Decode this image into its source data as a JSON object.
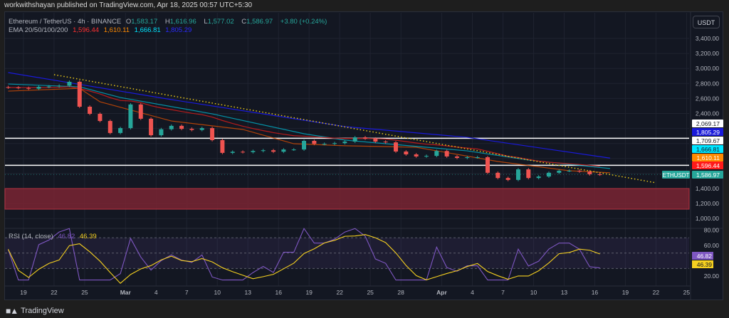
{
  "header": {
    "publisher_line": "workwithshayan published on TradingView.com, Apr 18, 2025 00:57 UTC+5:30"
  },
  "legend": {
    "symbol": "Ethereum / TetherUS · 4h · BINANCE",
    "o_label": "O",
    "o": "1,583.17",
    "h_label": "H",
    "h": "1,616.96",
    "l_label": "L",
    "l": "1,577.02",
    "c_label": "C",
    "c": "1,586.97",
    "change": "+3.80 (+0.24%)",
    "ema_label": "EMA 20/50/100/200",
    "ema20": "1,596.44",
    "ema50": "1,610.11",
    "ema100": "1,666.81",
    "ema200": "1,805.29",
    "rsi_label": "RSI (14, close)",
    "rsi": "46.82",
    "rsi_ma": "46.39"
  },
  "toolbar": {
    "currency": "USDT"
  },
  "footer": {
    "brand": "TradingView",
    "logo_text": "17"
  },
  "colors": {
    "up": "#26a69a",
    "down": "#ef5350",
    "ema20": "#b71c1c",
    "ema50": "#e65100",
    "ema100": "#00bcd4",
    "ema200": "#1a1adb",
    "trendline": "#e6c619",
    "rsi": "#7e57c2",
    "rsi_ma": "#f5d020",
    "zone": "#7a2532"
  },
  "chart_data": [
    {
      "type": "candlestick",
      "symbol": "ETHUSDT",
      "ylim": [
        1000,
        3500
      ],
      "y_ticks": [
        3400,
        3200,
        3000,
        2800,
        2600,
        2400,
        1400,
        1200,
        1000
      ],
      "y_tick_labels": [
        "3,400.00",
        "3,200.00",
        "3,000.00",
        "2,800.00",
        "2,600.00",
        "2,400.00",
        "1,400.00",
        "1,200.00",
        "1,000.00"
      ],
      "x_ticks": [
        {
          "date": "2025-02-19",
          "label": "19"
        },
        {
          "date": "2025-02-22",
          "label": "22"
        },
        {
          "date": "2025-02-25",
          "label": "25"
        },
        {
          "date": "2025-03-01",
          "label": "Mar"
        },
        {
          "date": "2025-03-04",
          "label": "4"
        },
        {
          "date": "2025-03-07",
          "label": "7"
        },
        {
          "date": "2025-03-10",
          "label": "10"
        },
        {
          "date": "2025-03-13",
          "label": "13"
        },
        {
          "date": "2025-03-16",
          "label": "16"
        },
        {
          "date": "2025-03-19",
          "label": "19"
        },
        {
          "date": "2025-03-22",
          "label": "22"
        },
        {
          "date": "2025-03-25",
          "label": "25"
        },
        {
          "date": "2025-03-28",
          "label": "28"
        },
        {
          "date": "2025-04-01",
          "label": "Apr"
        },
        {
          "date": "2025-04-04",
          "label": "4"
        },
        {
          "date": "2025-04-07",
          "label": "7"
        },
        {
          "date": "2025-04-10",
          "label": "10"
        },
        {
          "date": "2025-04-13",
          "label": "13"
        },
        {
          "date": "2025-04-16",
          "label": "16"
        },
        {
          "date": "2025-04-19",
          "label": "19"
        },
        {
          "date": "2025-04-22",
          "label": "22"
        },
        {
          "date": "2025-04-25",
          "label": "25"
        }
      ],
      "x_start": "2025-02-17",
      "daily_close": [
        2746,
        2740,
        2730,
        2755,
        2760,
        2770,
        2822,
        2490,
        2395,
        2300,
        2140,
        2205,
        2520,
        2330,
        2110,
        2190,
        2235,
        2195,
        2180,
        2205,
        2045,
        1875,
        1890,
        1885,
        1900,
        1910,
        1890,
        1920,
        1920,
        2035,
        1995,
        1995,
        2005,
        2025,
        2082,
        2065,
        2025,
        2015,
        1893,
        1855,
        1827,
        1835,
        1900,
        1827,
        1808,
        1817,
        1817,
        1610,
        1540,
        1515,
        1655,
        1540,
        1560,
        1610,
        1637,
        1637,
        1627,
        1590,
        1587
      ],
      "ema200": [
        {
          "date": "2025-02-17",
          "value": 2945
        },
        {
          "date": "2025-03-05",
          "value": 2585
        },
        {
          "date": "2025-03-22",
          "value": 2225
        },
        {
          "date": "2025-04-03",
          "value": 2082
        },
        {
          "date": "2025-04-17",
          "value": 1805.29
        }
      ],
      "ema100": [
        {
          "date": "2025-02-17",
          "value": 2793
        },
        {
          "date": "2025-02-24",
          "value": 2755
        },
        {
          "date": "2025-02-28",
          "value": 2613
        },
        {
          "date": "2025-03-09",
          "value": 2395
        },
        {
          "date": "2025-03-18",
          "value": 2130
        },
        {
          "date": "2025-03-22",
          "value": 2045
        },
        {
          "date": "2025-04-03",
          "value": 1902
        },
        {
          "date": "2025-04-09",
          "value": 1780
        },
        {
          "date": "2025-04-17",
          "value": 1666.81
        }
      ],
      "ema50": [
        {
          "date": "2025-02-17",
          "value": 2698
        },
        {
          "date": "2025-02-24",
          "value": 2735
        },
        {
          "date": "2025-02-26",
          "value": 2556
        },
        {
          "date": "2025-03-05",
          "value": 2300
        },
        {
          "date": "2025-03-12",
          "value": 2187
        },
        {
          "date": "2025-03-17",
          "value": 1997
        },
        {
          "date": "2025-03-22",
          "value": 1970
        },
        {
          "date": "2025-03-29",
          "value": 1950
        },
        {
          "date": "2025-04-06",
          "value": 1760
        },
        {
          "date": "2025-04-13",
          "value": 1637
        },
        {
          "date": "2025-04-17",
          "value": 1610.11
        }
      ],
      "trendline": [
        {
          "date": "2025-02-22",
          "value": 2917
        },
        {
          "date": "2025-04-22",
          "value": 1476
        }
      ],
      "horizontal_levels": [
        2069.17,
        1709.67
      ],
      "support_zone": [
        1125,
        1400
      ],
      "price_badges": [
        {
          "label": "2,069.17",
          "color": "#ffffff",
          "text": "#131722"
        },
        {
          "label": "1,805.29",
          "color": "#1a1adb",
          "text": "#ffffff"
        },
        {
          "label": "1,709.67",
          "color": "#ffffff",
          "text": "#131722"
        },
        {
          "label": "1,666.81",
          "color": "#00e5ff",
          "text": "#131722"
        },
        {
          "label": "1,610.11",
          "color": "#ff8a00",
          "text": "#ffffff"
        },
        {
          "label": "1,596.44",
          "color": "#ff1a1a",
          "text": "#ffffff"
        },
        {
          "label": "1,586.97",
          "color": "#26a69a",
          "text": "#ffffff"
        }
      ],
      "last_price_tag": "ETHUSDT"
    },
    {
      "type": "line",
      "title": "RSI (14, close)",
      "ylim": [
        10,
        85
      ],
      "y_ticks": [
        80,
        60,
        20
      ],
      "y_tick_labels": [
        "80.00",
        "60.00",
        "20.00"
      ],
      "band": [
        30,
        70
      ],
      "midline": 50,
      "badges": [
        {
          "label": "46.82",
          "color": "#7e57c2"
        },
        {
          "label": "46.39",
          "color": "#f5d020"
        }
      ]
    }
  ]
}
